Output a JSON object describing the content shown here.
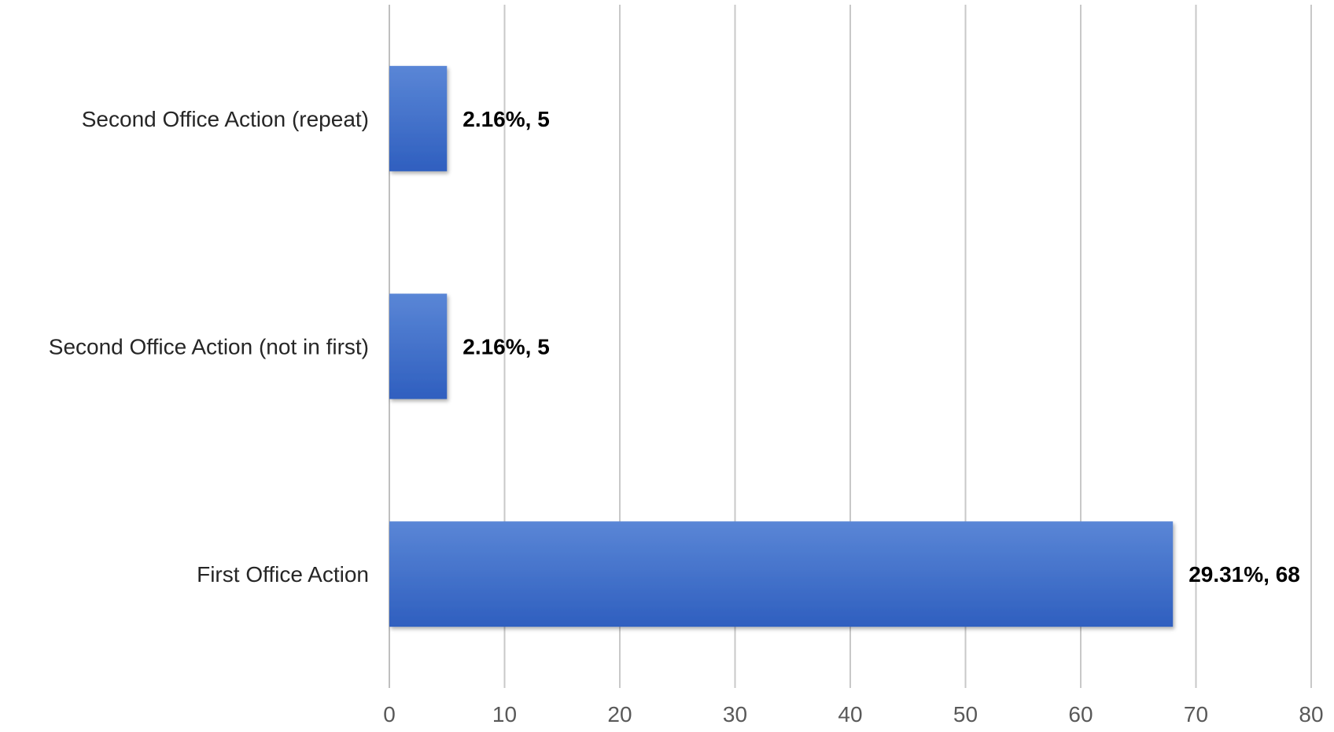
{
  "chart_data": {
    "type": "bar",
    "orientation": "horizontal",
    "categories": [
      "First Office Action",
      "Second Office Action (not in first)",
      "Second Office Action (repeat)"
    ],
    "values": [
      68,
      5,
      5
    ],
    "data_labels": [
      "29.31%, 68",
      "2.16%, 5",
      "2.16%, 5"
    ],
    "xlim": [
      0,
      80
    ],
    "xticks": [
      0,
      10,
      20,
      30,
      40,
      50,
      60,
      70,
      80
    ],
    "title": "",
    "xlabel": "",
    "ylabel": "",
    "grid": "vertical",
    "legend": "none",
    "colors": {
      "bar_top": "#5a86d6",
      "bar_bottom": "#2f5fbf",
      "grid": "#c8c8c8"
    }
  }
}
